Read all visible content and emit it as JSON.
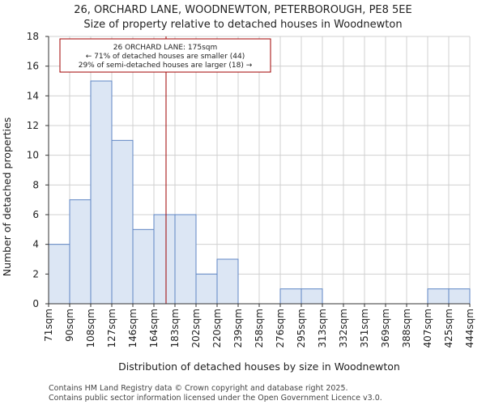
{
  "chart_data": {
    "type": "bar",
    "title": "26, ORCHARD LANE, WOODNEWTON, PETERBOROUGH, PE8 5EE",
    "subtitle": "Size of property relative to detached houses in Woodnewton",
    "xlabel": "Distribution of detached houses by size in Woodnewton",
    "ylabel": "Number of detached properties",
    "bin_edges": [
      71,
      90,
      108,
      127,
      146,
      164,
      183,
      202,
      220,
      239,
      258,
      276,
      295,
      313,
      332,
      351,
      369,
      388,
      407,
      425,
      444
    ],
    "tick_labels": [
      "71sqm",
      "90sqm",
      "108sqm",
      "127sqm",
      "146sqm",
      "164sqm",
      "183sqm",
      "202sqm",
      "220sqm",
      "239sqm",
      "258sqm",
      "276sqm",
      "295sqm",
      "313sqm",
      "332sqm",
      "351sqm",
      "369sqm",
      "388sqm",
      "407sqm",
      "425sqm",
      "444sqm"
    ],
    "values": [
      4,
      7,
      15,
      11,
      5,
      6,
      6,
      2,
      3,
      0,
      0,
      1,
      1,
      0,
      0,
      0,
      0,
      0,
      1,
      1
    ],
    "ylim": [
      0,
      18
    ],
    "yticks": [
      0,
      2,
      4,
      6,
      8,
      10,
      12,
      14,
      16,
      18
    ],
    "grid": true,
    "marker_value": 175,
    "annotation": {
      "line1": "26 ORCHARD LANE: 175sqm",
      "line2": "← 71% of detached houses are smaller (44)",
      "line3": "29% of semi-detached houses are larger (18) →"
    },
    "colors": {
      "bar_fill": "#dce6f4",
      "bar_edge": "#5f86c4",
      "marker": "#a00000",
      "grid": "#d0d0d0"
    }
  },
  "footer": {
    "line1": "Contains HM Land Registry data © Crown copyright and database right 2025.",
    "line2": "Contains public sector information licensed under the Open Government Licence v3.0."
  }
}
